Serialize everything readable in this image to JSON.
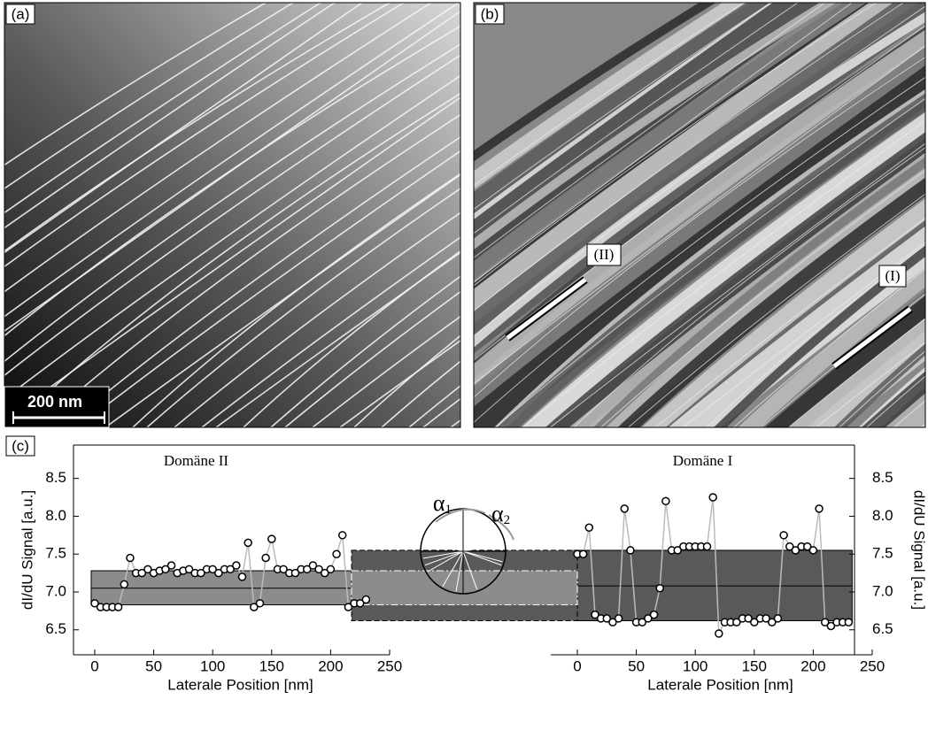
{
  "panels": {
    "a": {
      "label": "(a)",
      "scale_bar": "200 nm"
    },
    "b": {
      "label": "(b)",
      "markers": [
        "(II)",
        "(I)"
      ]
    },
    "c": {
      "label": "(c)"
    }
  },
  "inset": {
    "angles": [
      {
        "symbol": "α",
        "sub": "1"
      },
      {
        "symbol": "α",
        "sub": "2"
      }
    ]
  },
  "chart_data": [
    {
      "type": "scatter",
      "title": "Domäne II",
      "xlabel": "Laterale Position [nm]",
      "ylabel": "dI/dU Signal [a.u.]",
      "x": [
        0,
        5,
        10,
        15,
        20,
        25,
        30,
        35,
        40,
        45,
        50,
        55,
        60,
        65,
        70,
        75,
        80,
        85,
        90,
        95,
        100,
        105,
        110,
        115,
        120,
        125,
        130,
        135,
        140,
        145,
        150,
        155,
        160,
        165,
        170,
        175,
        180,
        185,
        190,
        195,
        200,
        205,
        210,
        215,
        220,
        225,
        230
      ],
      "values": [
        6.85,
        6.8,
        6.8,
        6.8,
        6.8,
        7.1,
        7.45,
        7.25,
        7.25,
        7.3,
        7.25,
        7.28,
        7.3,
        7.35,
        7.25,
        7.28,
        7.3,
        7.25,
        7.25,
        7.3,
        7.3,
        7.25,
        7.3,
        7.3,
        7.35,
        7.2,
        7.65,
        6.8,
        6.85,
        7.45,
        7.7,
        7.3,
        7.3,
        7.25,
        7.25,
        7.3,
        7.3,
        7.35,
        7.3,
        7.25,
        7.3,
        7.5,
        7.75,
        6.8,
        6.85,
        6.85,
        6.9
      ],
      "xlim": [
        -18,
        250
      ],
      "xticks": [
        0,
        50,
        100,
        150,
        200,
        250
      ],
      "ylim": [
        6.17,
        8.94
      ],
      "yticks": [
        6.5,
        {
          "value": 7,
          "label": "7.0"
        },
        7.5,
        {
          "value": 8,
          "label": "8.0"
        },
        8.5
      ],
      "band": [
        6.83,
        7.28
      ],
      "band_mid": 7.05,
      "band_color": "#8c8c8c",
      "color": "#ffffff"
    },
    {
      "type": "scatter",
      "title": "Domäne I",
      "xlabel": "Laterale Position [nm]",
      "ylabel": "dI/dU Signal [a.u.]",
      "x": [
        0,
        5,
        10,
        15,
        20,
        25,
        30,
        35,
        40,
        45,
        50,
        55,
        60,
        65,
        70,
        75,
        80,
        85,
        90,
        95,
        100,
        105,
        110,
        115,
        120,
        125,
        130,
        135,
        140,
        145,
        150,
        155,
        160,
        165,
        170,
        175,
        180,
        185,
        190,
        195,
        200,
        205,
        210,
        215,
        220,
        225,
        230
      ],
      "values": [
        7.5,
        7.5,
        7.85,
        6.7,
        6.65,
        6.65,
        6.6,
        6.65,
        8.1,
        7.55,
        6.6,
        6.6,
        6.65,
        6.7,
        7.05,
        8.2,
        7.55,
        7.55,
        7.6,
        7.6,
        7.6,
        7.6,
        7.6,
        8.25,
        6.45,
        6.6,
        6.6,
        6.6,
        6.65,
        6.65,
        6.6,
        6.65,
        6.65,
        6.6,
        6.65,
        7.75,
        7.6,
        7.55,
        7.6,
        7.6,
        7.55,
        8.1,
        6.6,
        6.55,
        6.6,
        6.6,
        6.6
      ],
      "xlim": [
        -22.5,
        250
      ],
      "xticks": [
        0,
        50,
        100,
        150,
        200,
        250
      ],
      "ylim": [
        6.17,
        8.94
      ],
      "yticks": [
        6.5,
        {
          "value": 7,
          "label": "7.0"
        },
        7.5,
        {
          "value": 8,
          "label": "8.0"
        },
        8.5
      ],
      "band": [
        6.62,
        7.55
      ],
      "band_mid": 7.08,
      "band_color": "#595959",
      "color": "#ffffff"
    }
  ]
}
